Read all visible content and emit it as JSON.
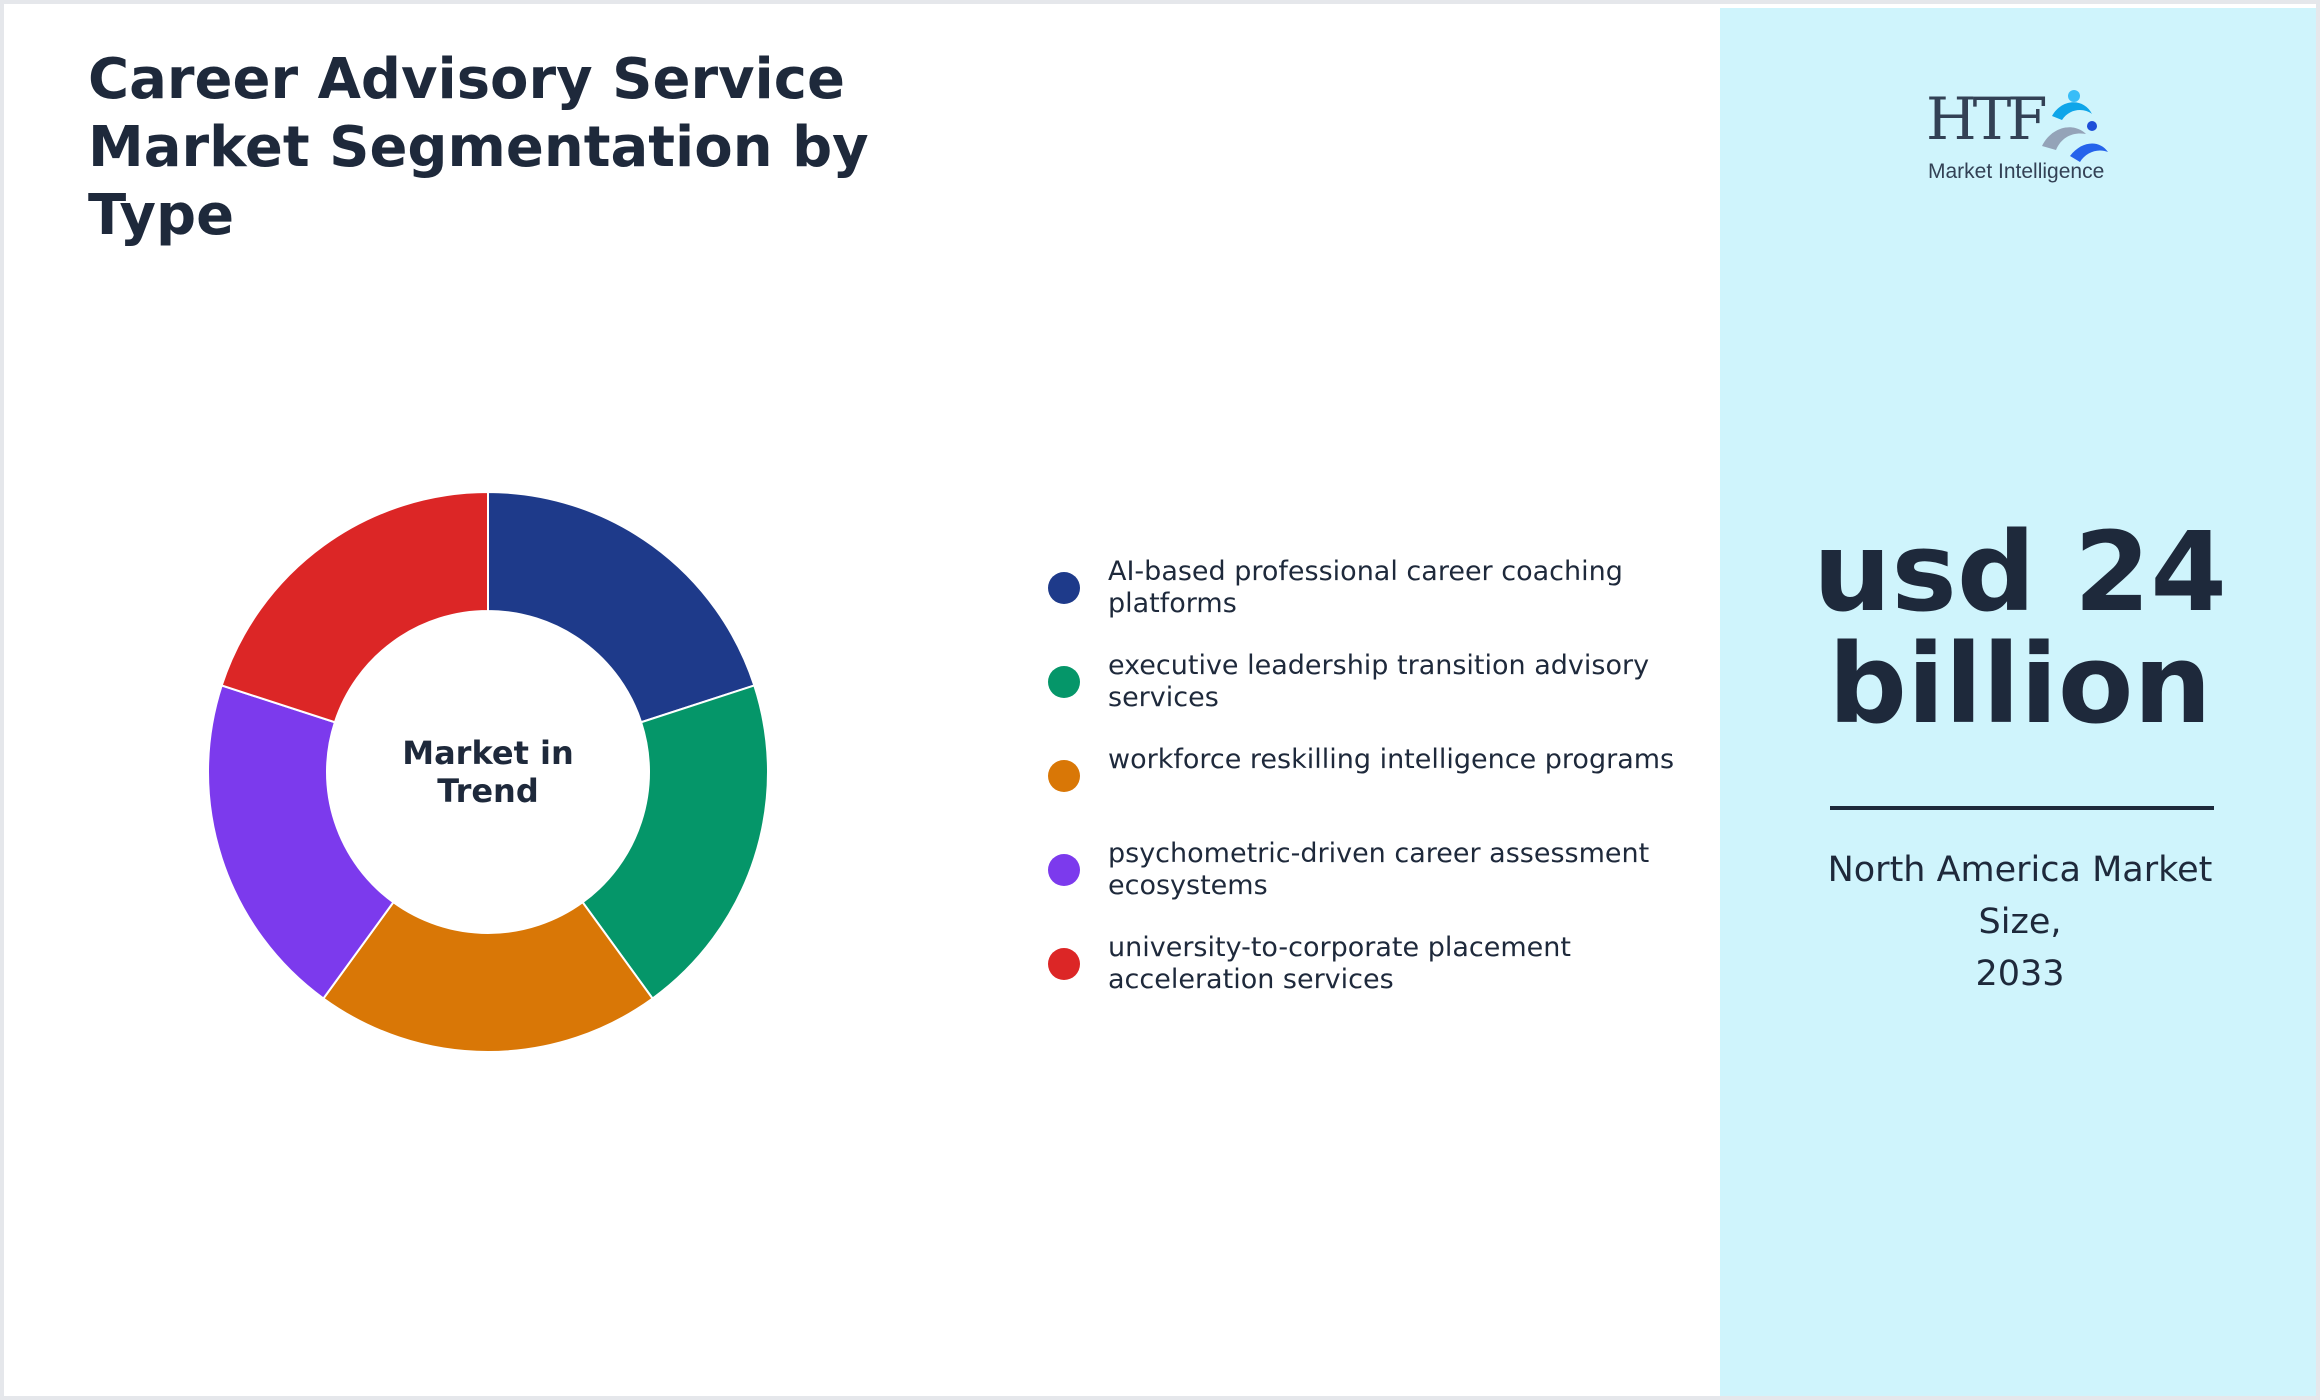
{
  "title": "Career Advisory Service Market Segmentation by Type",
  "chart_data": {
    "type": "pie",
    "variant": "donut",
    "center_label": [
      "Market in",
      "Trend"
    ],
    "categories": [
      "AI-based professional career coaching platforms",
      "executive leadership transition advisory services",
      "workforce reskilling intelligence programs",
      "psychometric-driven career assessment ecosystems",
      "university-to-corporate placement acceleration services"
    ],
    "values": [
      20,
      20,
      20,
      20,
      20
    ],
    "colors": [
      "#1e3a8a",
      "#059669",
      "#d97706",
      "#7c3aed",
      "#dc2626"
    ],
    "legend_position": "right",
    "start_angle_deg": 0,
    "direction": "clockwise"
  },
  "legend": {
    "items": [
      {
        "label": "AI-based professional career coaching platforms",
        "color": "#1e3a8a"
      },
      {
        "label": "executive leadership transition advisory services",
        "color": "#059669"
      },
      {
        "label": "workforce reskilling intelligence programs",
        "color": "#d97706"
      },
      {
        "label": "psychometric-driven career assessment ecosystems",
        "color": "#7c3aed"
      },
      {
        "label": "university-to-corporate placement acceleration services",
        "color": "#dc2626"
      }
    ]
  },
  "logo": {
    "text": "HTF",
    "subtitle": "Market Intelligence",
    "icon": "htf-logo-icon"
  },
  "market_size": {
    "value_line1": "usd 24",
    "value_line2": "billion",
    "caption_line1": "North America Market",
    "caption_line2": "Size,",
    "caption_line3": "2033"
  },
  "colors": {
    "text": "#1e293b",
    "side_panel": "#cff4fc",
    "border": "#e5e7eb"
  }
}
